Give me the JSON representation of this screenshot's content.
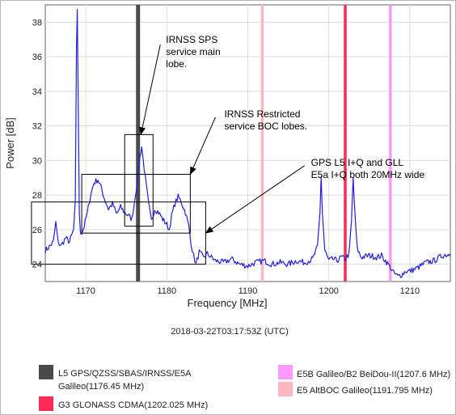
{
  "chart_data": {
    "type": "line",
    "xlabel": "Frequency [MHz]",
    "ylabel": "Power [dB]",
    "xlim": [
      1165,
      1215
    ],
    "ylim": [
      23,
      39
    ],
    "xticks": [
      1170,
      1180,
      1190,
      1200,
      1210
    ],
    "yticks": [
      24,
      26,
      28,
      30,
      32,
      34,
      36,
      38
    ],
    "grid": true,
    "timestamp": "2018-03-22T03:17:53Z (UTC)",
    "series": [
      {
        "color": "#1f1fdc",
        "x": [
          1165.0,
          1165.5,
          1166.0,
          1166.3,
          1166.6,
          1167.0,
          1167.5,
          1168.0,
          1168.5,
          1168.7,
          1168.85,
          1168.95,
          1169.05,
          1169.2,
          1169.35,
          1169.5,
          1169.8,
          1170.2,
          1170.6,
          1171.0,
          1171.5,
          1172.0,
          1172.3,
          1172.8,
          1173.3,
          1173.8,
          1174.3,
          1174.8,
          1175.3,
          1175.7,
          1176.0,
          1176.3,
          1176.6,
          1176.9,
          1177.2,
          1177.5,
          1177.8,
          1178.1,
          1178.5,
          1179.0,
          1179.5,
          1180.0,
          1180.3,
          1180.6,
          1181.0,
          1181.4,
          1181.8,
          1182.3,
          1182.7,
          1183.0,
          1183.3,
          1183.6,
          1184.0,
          1184.5,
          1185.0,
          1186.0,
          1187.0,
          1188.0,
          1189.0,
          1190.0,
          1191.0,
          1192.0,
          1193.0,
          1194.0,
          1195.0,
          1196.0,
          1197.0,
          1198.0,
          1198.6,
          1198.9,
          1199.05,
          1199.2,
          1199.5,
          1200.0,
          1200.5,
          1201.0,
          1201.5,
          1202.0,
          1202.5,
          1202.8,
          1203.0,
          1203.2,
          1203.5,
          1204.0,
          1205.0,
          1206.0,
          1206.5,
          1207.0,
          1207.5,
          1208.0,
          1208.5,
          1209.0,
          1209.5,
          1210.0,
          1211.0,
          1212.0,
          1213.0,
          1214.0,
          1215.0
        ],
        "values": [
          24.8,
          25.0,
          25.3,
          26.4,
          25.2,
          25.1,
          25.5,
          25.3,
          26.0,
          27.5,
          36.6,
          38.8,
          34.0,
          27.0,
          25.9,
          25.8,
          26.2,
          27.0,
          28.0,
          28.7,
          28.9,
          28.3,
          27.8,
          27.2,
          27.5,
          26.9,
          27.3,
          27.0,
          26.8,
          26.6,
          27.6,
          28.6,
          29.9,
          30.8,
          29.6,
          28.4,
          27.3,
          26.5,
          27.2,
          27.0,
          26.6,
          26.3,
          26.0,
          26.8,
          27.5,
          27.9,
          27.6,
          27.0,
          26.2,
          25.2,
          24.5,
          24.0,
          24.7,
          24.4,
          24.6,
          24.2,
          24.1,
          24.3,
          24.0,
          23.9,
          24.1,
          24.2,
          24.0,
          24.1,
          24.0,
          24.2,
          24.1,
          24.3,
          25.0,
          27.0,
          29.1,
          27.0,
          24.8,
          24.2,
          24.3,
          24.2,
          24.4,
          24.3,
          24.6,
          26.5,
          29.0,
          27.0,
          24.9,
          24.4,
          24.5,
          24.4,
          24.5,
          24.2,
          23.9,
          23.5,
          23.3,
          23.4,
          23.6,
          23.6,
          23.8,
          24.1,
          24.2,
          24.5,
          24.6
        ]
      }
    ],
    "markers": [
      {
        "name": "L5 GPS/QZSS/SBAS/IRNSS/E5A Galileo",
        "freq": 1176.45,
        "color": "#4a4a4a",
        "width": 5,
        "legend_line1": "L5 GPS/QZSS/SBAS/IRNSS/E5A",
        "legend_line2": "Galileo(1176.45 MHz)"
      },
      {
        "name": "G3 GLONASS CDMA",
        "freq": 1202.025,
        "color": "#ff2a55",
        "width": 3.5,
        "legend_line1": "G3 GLONASS CDMA(1202.025 MHz)",
        "legend_line2": ""
      },
      {
        "name": "E5B Galileo/B2 BeiDou-II",
        "freq": 1207.6,
        "color": "#ff99ff",
        "width": 3.5,
        "legend_line1": "E5B Galileo/B2 BeiDou-II(1207.6 MHz)",
        "legend_line2": ""
      },
      {
        "name": "E5 AltBOC Galileo",
        "freq": 1191.795,
        "color": "#ffb6c1",
        "width": 3.5,
        "legend_line1": "E5 AltBOC Galileo(1191.795 MHz)",
        "legend_line2": ""
      }
    ],
    "boxes": [
      {
        "x0": 1163.3,
        "x1": 1184.8,
        "y0": 24.0,
        "y1": 27.6
      },
      {
        "x0": 1169.5,
        "x1": 1182.9,
        "y0": 25.8,
        "y1": 29.2
      },
      {
        "x0": 1174.8,
        "x1": 1178.3,
        "y0": 26.2,
        "y1": 31.5
      }
    ],
    "annotations": [
      {
        "lines": [
          "IRNSS SPS",
          "service main",
          "lobe."
        ],
        "tx": 1179.9,
        "ty": 36.8,
        "ax": 1176.8,
        "ay": 31.5,
        "lx": 1179.2,
        "ly": 36.7
      },
      {
        "lines": [
          "IRNSS Restricted",
          "service BOC lobes."
        ],
        "tx": 1187.1,
        "ty": 32.5,
        "ax": 1182.9,
        "ay": 29.2,
        "lx": 1186.0,
        "ly": 32.5
      },
      {
        "lines": [
          "GPS L5 I+Q and GLL",
          "E5a I+Q both 20MHz wide"
        ],
        "tx": 1197.8,
        "ty": 29.7,
        "ax": 1184.8,
        "ay": 25.8,
        "lx": 1197.0,
        "ly": 29.7
      }
    ]
  }
}
